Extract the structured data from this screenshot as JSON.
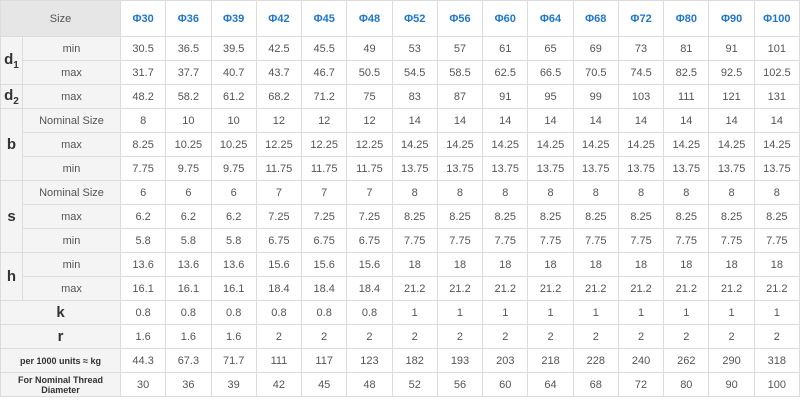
{
  "header": {
    "size_label": "Size",
    "sizes": [
      "Φ30",
      "Φ36",
      "Φ39",
      "Φ42",
      "Φ45",
      "Φ48",
      "Φ52",
      "Φ56",
      "Φ60",
      "Φ64",
      "Φ68",
      "Φ72",
      "Φ80",
      "Φ90",
      "Φ100"
    ]
  },
  "rows": [
    {
      "group": "d",
      "group_sub": "1",
      "span": 2,
      "label": "min",
      "values": [
        "30.5",
        "36.5",
        "39.5",
        "42.5",
        "45.5",
        "49",
        "53",
        "57",
        "61",
        "65",
        "69",
        "73",
        "81",
        "91",
        "101"
      ]
    },
    {
      "label": "max",
      "values": [
        "31.7",
        "37.7",
        "40.7",
        "43.7",
        "46.7",
        "50.5",
        "54.5",
        "58.5",
        "62.5",
        "66.5",
        "70.5",
        "74.5",
        "82.5",
        "92.5",
        "102.5"
      ]
    },
    {
      "group": "d",
      "group_sub": "2",
      "span": 1,
      "label": "max",
      "values": [
        "48.2",
        "58.2",
        "61.2",
        "68.2",
        "71.2",
        "75",
        "83",
        "87",
        "91",
        "95",
        "99",
        "103",
        "111",
        "121",
        "131"
      ]
    },
    {
      "group": "b",
      "span": 3,
      "label": "Nominal Size",
      "values": [
        "8",
        "10",
        "10",
        "12",
        "12",
        "12",
        "14",
        "14",
        "14",
        "14",
        "14",
        "14",
        "14",
        "14",
        "14"
      ]
    },
    {
      "label": "max",
      "values": [
        "8.25",
        "10.25",
        "10.25",
        "12.25",
        "12.25",
        "12.25",
        "14.25",
        "14.25",
        "14.25",
        "14.25",
        "14.25",
        "14.25",
        "14.25",
        "14.25",
        "14.25"
      ]
    },
    {
      "label": "min",
      "values": [
        "7.75",
        "9.75",
        "9.75",
        "11.75",
        "11.75",
        "11.75",
        "13.75",
        "13.75",
        "13.75",
        "13.75",
        "13.75",
        "13.75",
        "13.75",
        "13.75",
        "13.75"
      ]
    },
    {
      "group": "s",
      "span": 3,
      "label": "Nominal Size",
      "values": [
        "6",
        "6",
        "6",
        "7",
        "7",
        "7",
        "8",
        "8",
        "8",
        "8",
        "8",
        "8",
        "8",
        "8",
        "8"
      ]
    },
    {
      "label": "max",
      "values": [
        "6.2",
        "6.2",
        "6.2",
        "7.25",
        "7.25",
        "7.25",
        "8.25",
        "8.25",
        "8.25",
        "8.25",
        "8.25",
        "8.25",
        "8.25",
        "8.25",
        "8.25"
      ]
    },
    {
      "label": "min",
      "values": [
        "5.8",
        "5.8",
        "5.8",
        "6.75",
        "6.75",
        "6.75",
        "7.75",
        "7.75",
        "7.75",
        "7.75",
        "7.75",
        "7.75",
        "7.75",
        "7.75",
        "7.75"
      ]
    },
    {
      "group": "h",
      "span": 2,
      "label": "min",
      "values": [
        "13.6",
        "13.6",
        "13.6",
        "15.6",
        "15.6",
        "15.6",
        "18",
        "18",
        "18",
        "18",
        "18",
        "18",
        "18",
        "18",
        "18"
      ]
    },
    {
      "label": "max",
      "values": [
        "16.1",
        "16.1",
        "16.1",
        "18.4",
        "18.4",
        "18.4",
        "21.2",
        "21.2",
        "21.2",
        "21.2",
        "21.2",
        "21.2",
        "21.2",
        "21.2",
        "21.2"
      ]
    },
    {
      "wide": "k",
      "big": true,
      "values": [
        "0.8",
        "0.8",
        "0.8",
        "0.8",
        "0.8",
        "0.8",
        "1",
        "1",
        "1",
        "1",
        "1",
        "1",
        "1",
        "1",
        "1"
      ]
    },
    {
      "wide": "r",
      "big": true,
      "values": [
        "1.6",
        "1.6",
        "1.6",
        "2",
        "2",
        "2",
        "2",
        "2",
        "2",
        "2",
        "2",
        "2",
        "2",
        "2",
        "2"
      ]
    },
    {
      "wide": "per 1000 units ≈ kg",
      "values": [
        "44.3",
        "67.3",
        "71.7",
        "111",
        "117",
        "123",
        "182",
        "193",
        "203",
        "218",
        "228",
        "240",
        "262",
        "290",
        "318"
      ]
    },
    {
      "wide": "For Nominal Thread Diameter",
      "values": [
        "30",
        "36",
        "39",
        "42",
        "45",
        "48",
        "52",
        "56",
        "60",
        "64",
        "68",
        "72",
        "80",
        "90",
        "100"
      ]
    }
  ]
}
